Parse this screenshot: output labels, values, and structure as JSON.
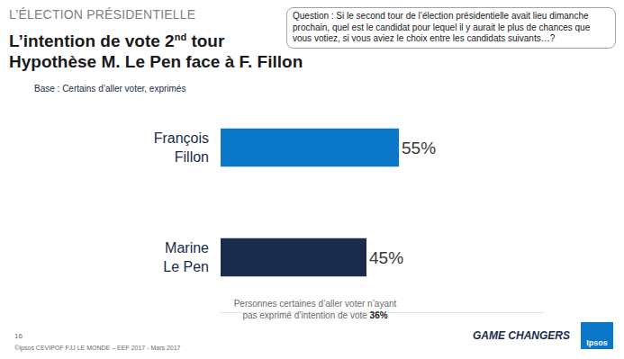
{
  "page": {
    "section": "L’ÉLECTION PRÉSIDENTIELLE",
    "title_lines": [
      "L’intention de vote 2nd tour",
      "Hypothèse M. Le Pen face à F. Fillon"
    ],
    "question": "Question : Si le second tour de l’élection présidentielle avait lieu dimanche prochain, quel est le candidat pour lequel il y aurait le plus de chances que vous votiez, si vous aviez le choix entre les candidats suivants…?",
    "base": "Base : Certains d’aller voter, exprimés",
    "note": "Personnes certaines d’aller voter n’ayant pas exprimé d’intention de vote 36%",
    "page_number": "16",
    "source": "©Ipsos CEVIPOF FJJ LE MONDE – EEF 2017 - Mars 2017",
    "tagline": "GAME CHANGERS",
    "logo": "Ipsos"
  },
  "chart_data": {
    "type": "bar",
    "orientation": "horizontal",
    "categories": [
      "François Fillon",
      "Marine Le Pen"
    ],
    "values": [
      55,
      45
    ],
    "value_labels": [
      "55%",
      "45%"
    ],
    "colors": [
      "#0a77c9",
      "#1b2b4b"
    ],
    "data_labels": true,
    "tick_labels": "y",
    "grid": false,
    "xlim": [
      0,
      100
    ],
    "xticks": []
  }
}
